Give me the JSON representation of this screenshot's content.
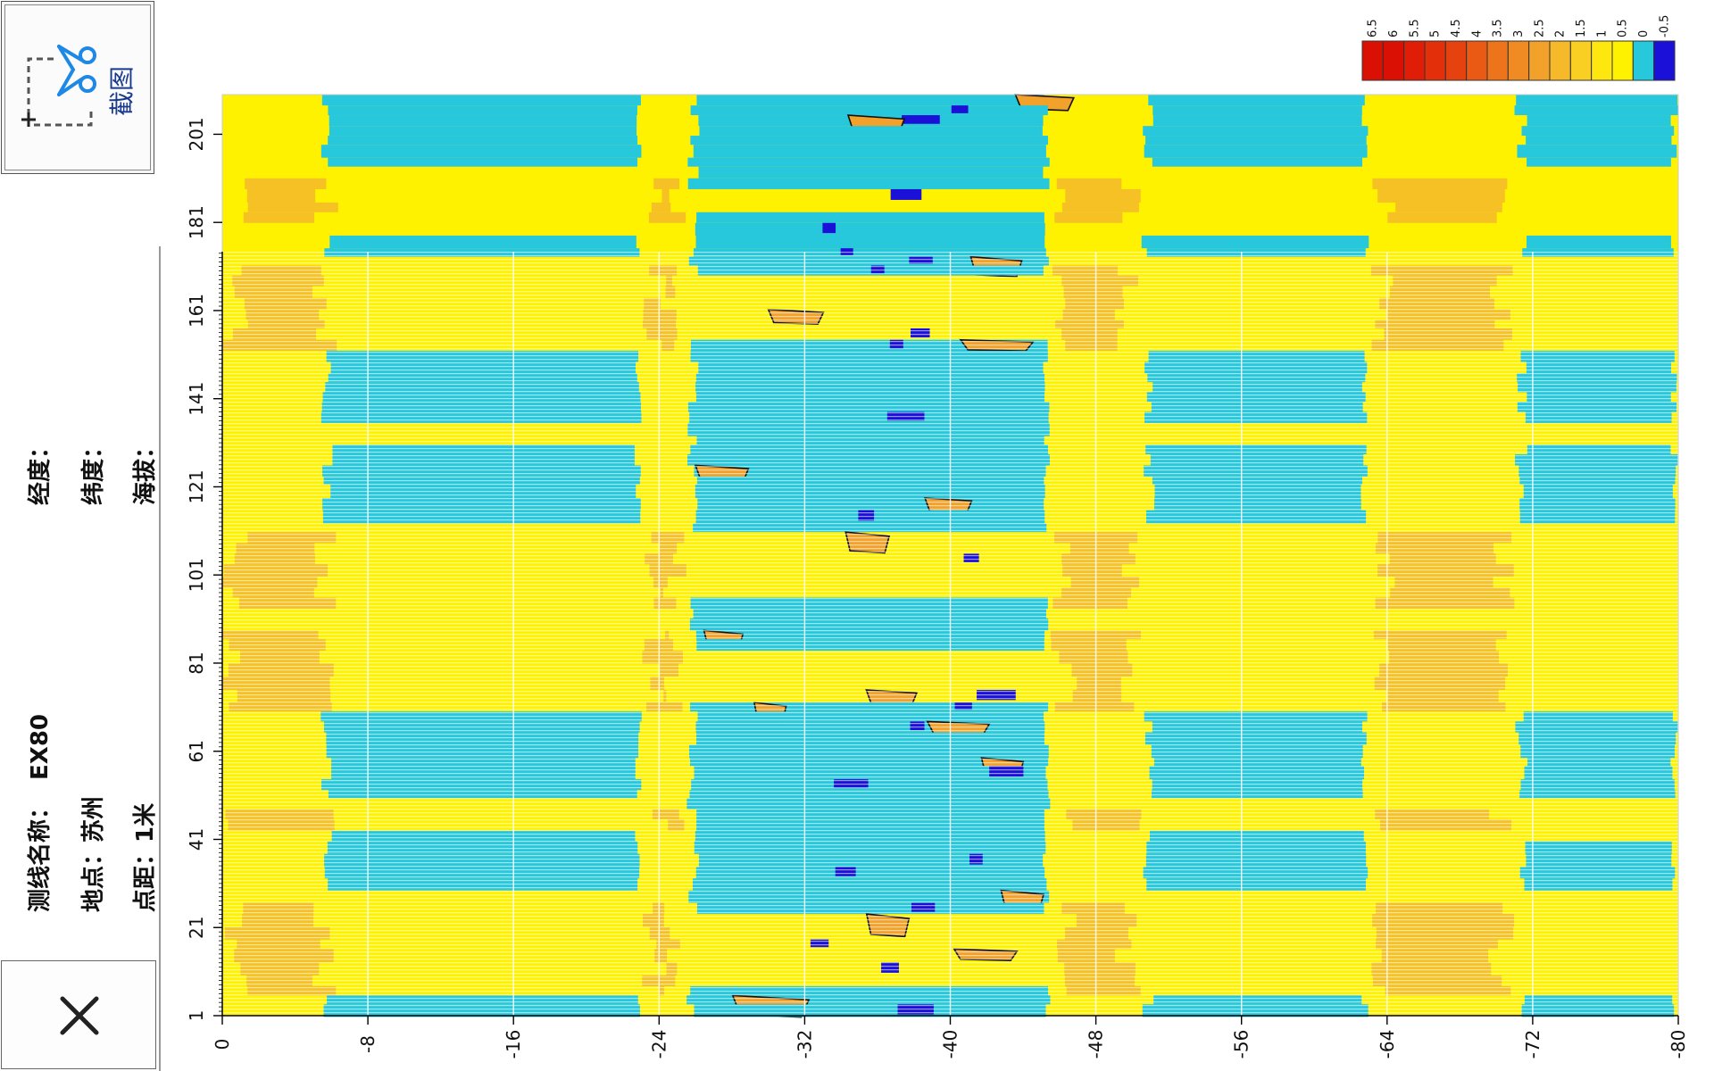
{
  "toolbar": {
    "screenshot_label": "截图"
  },
  "info": {
    "line_name_label": "测线名称：",
    "line_name_value": "EX80",
    "location_label": "地点：",
    "location_value": "苏州",
    "spacing_label": "点距：",
    "spacing_value": "1米",
    "longitude_label": "经度：",
    "latitude_label": "纬度：",
    "altitude_label": "海拔："
  },
  "colors": {
    "bands": [
      "#1a10d8",
      "#27c7dc",
      "#fff200",
      "#fde70f",
      "#f9cf23",
      "#f5b92a",
      "#f2a12b",
      "#f08a23",
      "#ee741b",
      "#ea5a14",
      "#e6420f",
      "#e3300b",
      "#e01e07",
      "#db1004"
    ],
    "contour_light": "#a8a8a8",
    "contour_dark": "#111111"
  },
  "chart_data": {
    "type": "heatmap",
    "orientation": "rotated-90-ccw",
    "x_axis": {
      "ticks": [
        0,
        -8,
        -16,
        -24,
        -32,
        -40,
        -48,
        -56,
        -64,
        -72,
        -80
      ],
      "range": [
        0,
        -80
      ]
    },
    "y_axis": {
      "ticks": [
        1,
        21,
        41,
        61,
        81,
        101,
        121,
        141,
        161,
        181,
        201
      ],
      "range": [
        1,
        210
      ]
    },
    "legend": {
      "levels": [
        "6.5",
        "6",
        "5.5",
        "5",
        "4.5",
        "4",
        "3.5",
        "3",
        "2.5",
        "2",
        "1.5",
        "1",
        "0.5",
        "0",
        "-0.5"
      ],
      "placement": "top-right"
    },
    "grid": true
  }
}
